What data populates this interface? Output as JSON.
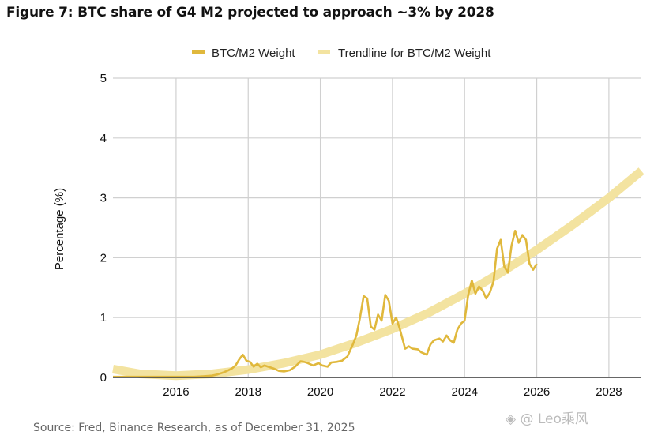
{
  "title": "Figure 7: BTC share of G4 M2 projected to approach ~3% by 2028",
  "source": "Source: Fred, Binance Research, as of December 31, 2025",
  "watermark": "◈ @ Leo乘风",
  "chart_data": {
    "type": "line",
    "title": "Figure 7: BTC share of G4 M2 projected to approach ~3% by 2028",
    "xlabel": "",
    "ylabel": "Percentage (%)",
    "xlim": [
      2014.25,
      2028.9
    ],
    "ylim": [
      0,
      5
    ],
    "x_ticks": [
      2016,
      2018,
      2020,
      2022,
      2024,
      2026,
      2028
    ],
    "x_tick_labels": [
      "2016",
      "2018",
      "2020",
      "2022",
      "2024",
      "2026",
      "2028"
    ],
    "y_ticks": [
      0,
      1,
      2,
      3,
      4,
      5
    ],
    "y_tick_labels": [
      "0",
      "1",
      "2",
      "3",
      "4",
      "5"
    ],
    "grid": true,
    "legend": "top-center",
    "colors": {
      "btc": "#e0b83c",
      "trend": "#f3e3a0",
      "grid": "#d0d0d0",
      "axis": "#333333"
    },
    "series": [
      {
        "name": "BTC/M2 Weight",
        "x": [
          2014.25,
          2014.5,
          2014.75,
          2015.0,
          2015.25,
          2015.5,
          2015.75,
          2016.0,
          2016.25,
          2016.5,
          2016.75,
          2017.0,
          2017.15,
          2017.3,
          2017.45,
          2017.55,
          2017.65,
          2017.75,
          2017.85,
          2017.95,
          2018.05,
          2018.15,
          2018.25,
          2018.35,
          2018.45,
          2018.55,
          2018.7,
          2018.85,
          2019.0,
          2019.15,
          2019.3,
          2019.45,
          2019.55,
          2019.65,
          2019.8,
          2019.95,
          2020.05,
          2020.2,
          2020.3,
          2020.45,
          2020.6,
          2020.75,
          2020.9,
          2021.0,
          2021.1,
          2021.2,
          2021.3,
          2021.4,
          2021.5,
          2021.6,
          2021.7,
          2021.8,
          2021.9,
          2022.0,
          2022.1,
          2022.2,
          2022.35,
          2022.45,
          2022.55,
          2022.7,
          2022.8,
          2022.95,
          2023.05,
          2023.15,
          2023.3,
          2023.4,
          2023.5,
          2023.6,
          2023.7,
          2023.8,
          2023.9,
          2024.0,
          2024.1,
          2024.2,
          2024.3,
          2024.4,
          2024.5,
          2024.6,
          2024.7,
          2024.8,
          2024.9,
          2025.0,
          2025.1,
          2025.2,
          2025.3,
          2025.4,
          2025.5,
          2025.6,
          2025.7,
          2025.8,
          2025.9,
          2026.0
        ],
        "y": [
          0.01,
          0.01,
          0.01,
          0.01,
          0.01,
          0.01,
          0.01,
          0.01,
          0.01,
          0.01,
          0.02,
          0.03,
          0.05,
          0.08,
          0.12,
          0.15,
          0.2,
          0.3,
          0.38,
          0.28,
          0.26,
          0.18,
          0.23,
          0.17,
          0.2,
          0.18,
          0.15,
          0.11,
          0.1,
          0.12,
          0.18,
          0.27,
          0.26,
          0.24,
          0.2,
          0.24,
          0.2,
          0.18,
          0.25,
          0.26,
          0.28,
          0.35,
          0.55,
          0.7,
          1.0,
          1.36,
          1.32,
          0.85,
          0.8,
          1.05,
          0.95,
          1.38,
          1.28,
          0.9,
          1.0,
          0.82,
          0.48,
          0.52,
          0.48,
          0.47,
          0.42,
          0.38,
          0.55,
          0.62,
          0.65,
          0.6,
          0.7,
          0.62,
          0.58,
          0.8,
          0.9,
          0.95,
          1.38,
          1.62,
          1.4,
          1.52,
          1.45,
          1.32,
          1.42,
          1.6,
          2.15,
          2.3,
          1.85,
          1.75,
          2.2,
          2.45,
          2.25,
          2.38,
          2.3,
          1.9,
          1.8,
          1.9
        ]
      },
      {
        "name": "Trendline for BTC/M2 Weight",
        "x": [
          2014.25,
          2015,
          2016,
          2017,
          2018,
          2019,
          2020,
          2021,
          2022,
          2023,
          2024,
          2025,
          2026,
          2027,
          2028,
          2028.9
        ],
        "y": [
          0.14,
          0.06,
          0.03,
          0.06,
          0.13,
          0.24,
          0.38,
          0.58,
          0.81,
          1.08,
          1.4,
          1.75,
          2.13,
          2.55,
          3.0,
          3.45
        ]
      }
    ]
  }
}
